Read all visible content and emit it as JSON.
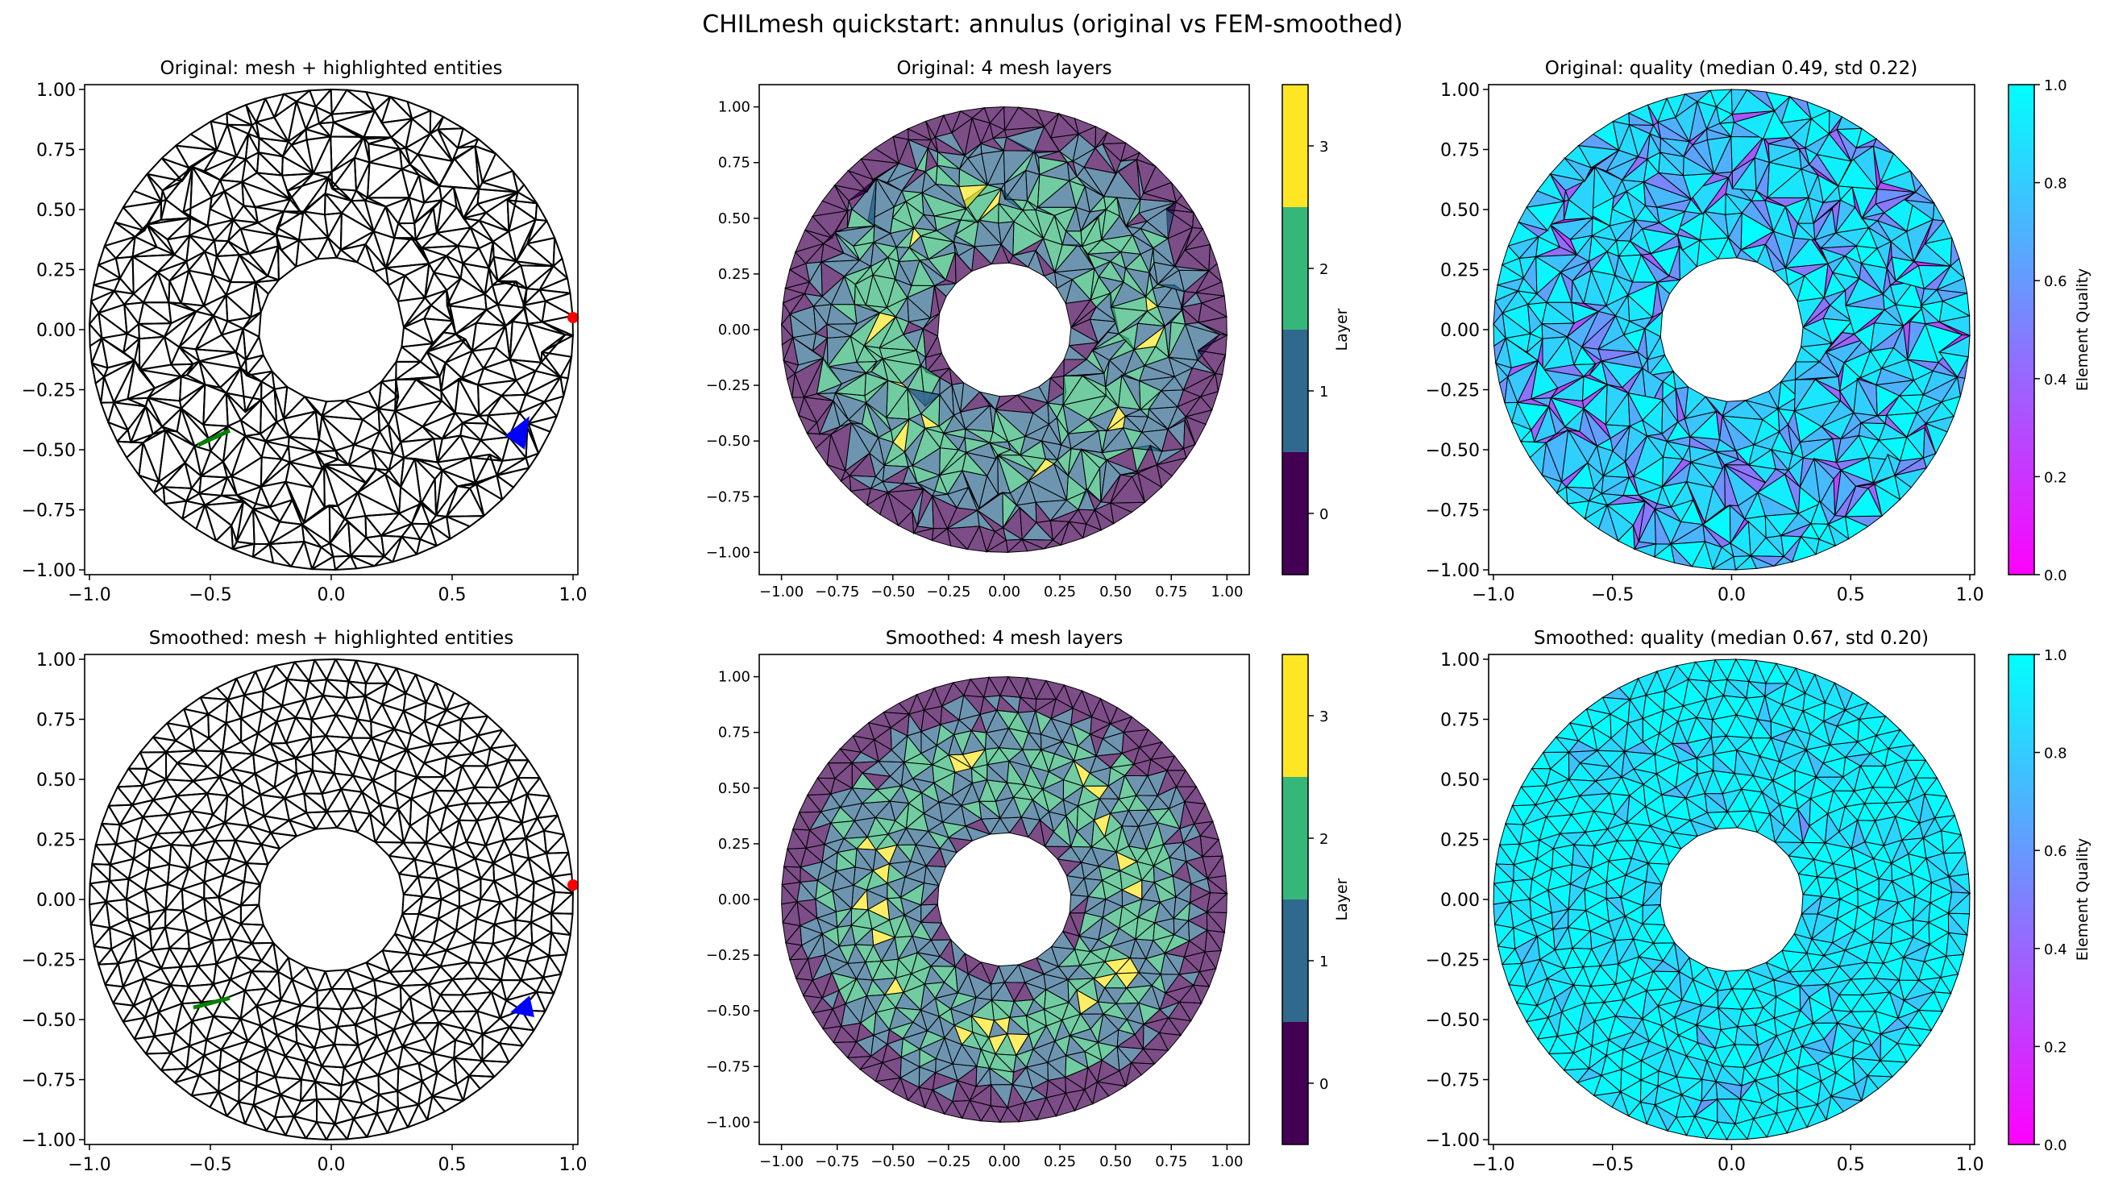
{
  "figure": {
    "title": "CHILmesh quickstart: annulus (original vs FEM-smoothed)"
  },
  "colors": {
    "layers": [
      "#440154",
      "#31688e",
      "#35b779",
      "#fde725"
    ],
    "node_highlight": "#ff0000",
    "edge_highlight": "#008000",
    "element_highlight": "#0000ff",
    "quality_colormap": "cool (0.0 magenta to 1.0 cyan)"
  },
  "chart_data": [
    {
      "type": "mesh",
      "variant": "original",
      "title": "Original: mesh + highlighted entities",
      "xlim": [
        -1.02,
        1.02
      ],
      "ylim": [
        -1.02,
        1.02
      ],
      "xticks": [
        "−1.0",
        "−0.5",
        "0.0",
        "0.5",
        "1.0"
      ],
      "xtick_values": [
        -1,
        -0.5,
        0,
        0.5,
        1
      ],
      "yticks": [
        "−1.00",
        "−0.75",
        "−0.50",
        "−0.25",
        "0.00",
        "0.25",
        "0.50",
        "0.75",
        "1.00"
      ],
      "ytick_values": [
        -1,
        -0.75,
        -0.5,
        -0.25,
        0,
        0.25,
        0.5,
        0.75,
        1
      ],
      "annulus": {
        "inner_radius": 0.3,
        "outer_radius": 1.0
      },
      "highlights": {
        "node": [
          1.0,
          0.05
        ],
        "edge": [
          [
            -0.55,
            -0.48
          ],
          [
            -0.42,
            -0.42
          ]
        ],
        "element": [
          [
            0.72,
            -0.44
          ],
          [
            0.82,
            -0.36
          ],
          [
            0.8,
            -0.5
          ]
        ]
      }
    },
    {
      "type": "mesh-layers",
      "variant": "original",
      "title": "Original: 4 mesh layers",
      "xlim": [
        -1.1,
        1.1
      ],
      "ylim": [
        -1.1,
        1.1
      ],
      "xticks": [
        "−1.00",
        "−0.75",
        "−0.50",
        "−0.25",
        "0.00",
        "0.25",
        "0.50",
        "0.75",
        "1.00"
      ],
      "xtick_values": [
        -1,
        -0.75,
        -0.5,
        -0.25,
        0,
        0.25,
        0.5,
        0.75,
        1
      ],
      "yticks": [
        "−1.00",
        "−0.75",
        "−0.50",
        "−0.25",
        "0.00",
        "0.25",
        "0.50",
        "0.75",
        "1.00"
      ],
      "ytick_values": [
        -1,
        -0.75,
        -0.5,
        -0.25,
        0,
        0.25,
        0.5,
        0.75,
        1
      ],
      "colorbar": {
        "label": "Layer",
        "ticks": [
          "0",
          "1",
          "2",
          "3"
        ]
      }
    },
    {
      "type": "mesh-quality",
      "variant": "original",
      "title": "Original: quality (median 0.49, std 0.22)",
      "median": 0.49,
      "std": 0.22,
      "xlim": [
        -1.02,
        1.02
      ],
      "ylim": [
        -1.02,
        1.02
      ],
      "xticks": [
        "−1.0",
        "−0.5",
        "0.0",
        "0.5",
        "1.0"
      ],
      "xtick_values": [
        -1,
        -0.5,
        0,
        0.5,
        1
      ],
      "yticks": [
        "−1.00",
        "−0.75",
        "−0.50",
        "−0.25",
        "0.00",
        "0.25",
        "0.50",
        "0.75",
        "1.00"
      ],
      "ytick_values": [
        -1,
        -0.75,
        -0.5,
        -0.25,
        0,
        0.25,
        0.5,
        0.75,
        1
      ],
      "colorbar": {
        "label": "Element Quality",
        "range": [
          0,
          1
        ],
        "ticks": [
          "0.0",
          "0.2",
          "0.4",
          "0.6",
          "0.8",
          "1.0"
        ]
      }
    },
    {
      "type": "mesh",
      "variant": "smoothed",
      "title": "Smoothed: mesh + highlighted entities",
      "xlim": [
        -1.02,
        1.02
      ],
      "ylim": [
        -1.02,
        1.02
      ],
      "xticks": [
        "−1.0",
        "−0.5",
        "0.0",
        "0.5",
        "1.0"
      ],
      "xtick_values": [
        -1,
        -0.5,
        0,
        0.5,
        1
      ],
      "yticks": [
        "−1.00",
        "−0.75",
        "−0.50",
        "−0.25",
        "0.00",
        "0.25",
        "0.50",
        "0.75",
        "1.00"
      ],
      "ytick_values": [
        -1,
        -0.75,
        -0.5,
        -0.25,
        0,
        0.25,
        0.5,
        0.75,
        1
      ],
      "annulus": {
        "inner_radius": 0.3,
        "outer_radius": 1.0
      },
      "highlights": {
        "node": [
          1.0,
          0.06
        ],
        "edge": [
          [
            -0.57,
            -0.45
          ],
          [
            -0.42,
            -0.41
          ]
        ],
        "element": [
          [
            0.74,
            -0.47
          ],
          [
            0.82,
            -0.4
          ],
          [
            0.84,
            -0.49
          ]
        ]
      }
    },
    {
      "type": "mesh-layers",
      "variant": "smoothed",
      "title": "Smoothed: 4 mesh layers",
      "xlim": [
        -1.1,
        1.1
      ],
      "ylim": [
        -1.1,
        1.1
      ],
      "xticks": [
        "−1.00",
        "−0.75",
        "−0.50",
        "−0.25",
        "0.00",
        "0.25",
        "0.50",
        "0.75",
        "1.00"
      ],
      "xtick_values": [
        -1,
        -0.75,
        -0.5,
        -0.25,
        0,
        0.25,
        0.5,
        0.75,
        1
      ],
      "yticks": [
        "−1.00",
        "−0.75",
        "−0.50",
        "−0.25",
        "0.00",
        "0.25",
        "0.50",
        "0.75",
        "1.00"
      ],
      "ytick_values": [
        -1,
        -0.75,
        -0.5,
        -0.25,
        0,
        0.25,
        0.5,
        0.75,
        1
      ],
      "colorbar": {
        "label": "Layer",
        "ticks": [
          "0",
          "1",
          "2",
          "3"
        ]
      }
    },
    {
      "type": "mesh-quality",
      "variant": "smoothed",
      "title": "Smoothed: quality (median 0.67, std 0.20)",
      "median": 0.67,
      "std": 0.2,
      "xlim": [
        -1.02,
        1.02
      ],
      "ylim": [
        -1.02,
        1.02
      ],
      "xticks": [
        "−1.0",
        "−0.5",
        "0.0",
        "0.5",
        "1.0"
      ],
      "xtick_values": [
        -1,
        -0.5,
        0,
        0.5,
        1
      ],
      "yticks": [
        "−1.00",
        "−0.75",
        "−0.50",
        "−0.25",
        "0.00",
        "0.25",
        "0.50",
        "0.75",
        "1.00"
      ],
      "ytick_values": [
        -1,
        -0.75,
        -0.5,
        -0.25,
        0,
        0.25,
        0.5,
        0.75,
        1
      ],
      "colorbar": {
        "label": "Element Quality",
        "range": [
          0,
          1
        ],
        "ticks": [
          "0.0",
          "0.2",
          "0.4",
          "0.6",
          "0.8",
          "1.0"
        ]
      }
    }
  ]
}
